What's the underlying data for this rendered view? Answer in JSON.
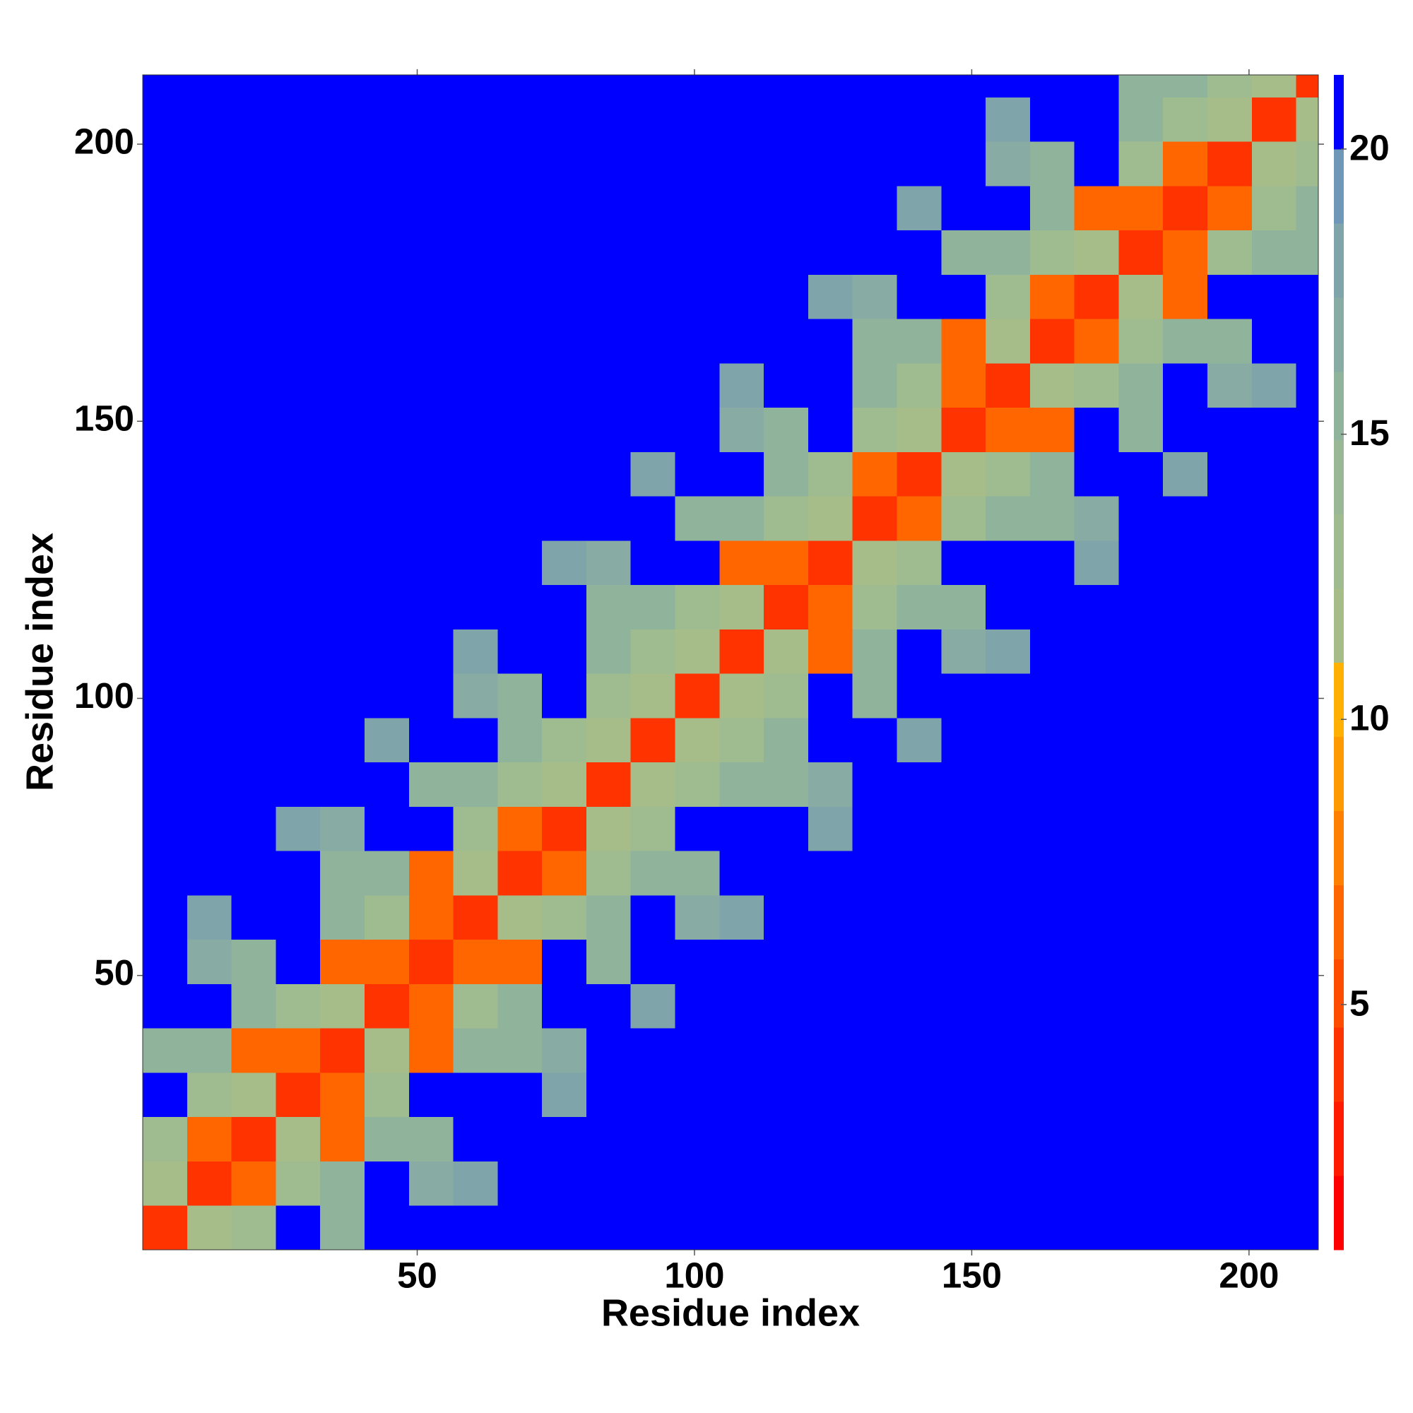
{
  "chart_data": {
    "type": "heatmap",
    "xlabel": "Residue index",
    "ylabel": "Residue index",
    "xbins": [
      0.5,
      8.5,
      16.5,
      24.5,
      32.5,
      40.5,
      48.5,
      56.5,
      64.5,
      72.5,
      80.5,
      88.5,
      96.5,
      104.5,
      112.5,
      120.5,
      128.5,
      136.5,
      144.5,
      152.5,
      160.5,
      168.5,
      176.5,
      184.5,
      192.5,
      200.5,
      208.5,
      212.5
    ],
    "ybins": [
      0.5,
      8.5,
      16.5,
      24.5,
      32.5,
      40.5,
      48.5,
      56.5,
      64.5,
      72.5,
      80.5,
      88.5,
      96.5,
      104.5,
      112.5,
      120.5,
      128.5,
      136.5,
      144.5,
      152.5,
      160.5,
      168.5,
      176.5,
      184.5,
      192.5,
      200.5,
      208.5,
      212.5
    ],
    "xlim": [
      0.5,
      212.5
    ],
    "ylim": [
      0.5,
      212.5
    ],
    "xticks": [
      50,
      100,
      150,
      200
    ],
    "yticks": [
      50,
      100,
      150,
      200
    ],
    "colorbar": {
      "levels": [
        0.7,
        2.0,
        3.3,
        4.6,
        5.8,
        7.1,
        8.4,
        9.7,
        11.0,
        12.3,
        13.6,
        14.9,
        16.1,
        17.4,
        18.7,
        20.0,
        21.3
      ],
      "colors": [
        "#ff0000",
        "#ff1a00",
        "#ff3300",
        "#ff4d00",
        "#ff6600",
        "#ff8000",
        "#ff9900",
        "#ffb000",
        "#a6bd8a",
        "#9fbb90",
        "#98b896",
        "#90b39c",
        "#88aca3",
        "#7fa5ab",
        "#6f97b8",
        "#0000ff"
      ],
      "ticks": [
        5,
        10,
        15,
        20
      ]
    },
    "z": [
      [
        4,
        11,
        13,
        21,
        16,
        21,
        21,
        21,
        21,
        21,
        21,
        21,
        21,
        21,
        21,
        21,
        21,
        21,
        21,
        21,
        21,
        21,
        21,
        21,
        21,
        21,
        21
      ],
      [
        11,
        4,
        6,
        13,
        15,
        21,
        17,
        18,
        21,
        21,
        21,
        21,
        21,
        21,
        21,
        21,
        21,
        21,
        21,
        21,
        21,
        21,
        21,
        21,
        21,
        21,
        21
      ],
      [
        13,
        6,
        4,
        11,
        7,
        15,
        16,
        21,
        21,
        21,
        21,
        21,
        21,
        21,
        21,
        21,
        21,
        21,
        21,
        21,
        21,
        21,
        21,
        21,
        21,
        21,
        21
      ],
      [
        21,
        13,
        11,
        4,
        6,
        13,
        21,
        21,
        21,
        18,
        21,
        21,
        21,
        21,
        21,
        21,
        21,
        21,
        21,
        21,
        21,
        21,
        21,
        21,
        21,
        21,
        21
      ],
      [
        16,
        15,
        7,
        6,
        4,
        11,
        7,
        15,
        16,
        17,
        21,
        21,
        21,
        21,
        21,
        21,
        21,
        21,
        21,
        21,
        21,
        21,
        21,
        21,
        21,
        21,
        21
      ],
      [
        21,
        21,
        15,
        13,
        11,
        4,
        6,
        13,
        15,
        21,
        21,
        18,
        21,
        21,
        21,
        21,
        21,
        21,
        21,
        21,
        21,
        21,
        21,
        21,
        21,
        21,
        21
      ],
      [
        21,
        17,
        16,
        21,
        7,
        6,
        4,
        6,
        7,
        21,
        16,
        21,
        21,
        21,
        21,
        21,
        21,
        21,
        21,
        21,
        21,
        21,
        21,
        21,
        21,
        21,
        21
      ],
      [
        21,
        18,
        21,
        21,
        15,
        13,
        6,
        4,
        11,
        13,
        15,
        21,
        17,
        18,
        21,
        21,
        21,
        21,
        21,
        21,
        21,
        21,
        21,
        21,
        21,
        21,
        21
      ],
      [
        21,
        21,
        21,
        21,
        16,
        15,
        7,
        11,
        4,
        6,
        13,
        15,
        16,
        21,
        21,
        21,
        21,
        21,
        21,
        21,
        21,
        21,
        21,
        21,
        21,
        21,
        21
      ],
      [
        21,
        21,
        21,
        18,
        17,
        21,
        21,
        13,
        6,
        4,
        11,
        13,
        21,
        21,
        21,
        18,
        21,
        21,
        21,
        21,
        21,
        21,
        21,
        21,
        21,
        21,
        21
      ],
      [
        21,
        21,
        21,
        21,
        21,
        21,
        16,
        15,
        13,
        11,
        4,
        11,
        13,
        15,
        16,
        17,
        21,
        21,
        21,
        21,
        21,
        21,
        21,
        21,
        21,
        21,
        21
      ],
      [
        21,
        21,
        21,
        21,
        21,
        18,
        21,
        21,
        15,
        13,
        11,
        4,
        11,
        13,
        15,
        21,
        21,
        18,
        21,
        21,
        21,
        21,
        21,
        21,
        21,
        21,
        21
      ],
      [
        21,
        21,
        21,
        21,
        21,
        21,
        21,
        17,
        16,
        21,
        13,
        11,
        4,
        11,
        13,
        21,
        16,
        21,
        21,
        21,
        21,
        21,
        21,
        21,
        21,
        21,
        21
      ],
      [
        21,
        21,
        21,
        21,
        21,
        21,
        21,
        18,
        21,
        21,
        15,
        13,
        11,
        4,
        11,
        7,
        15,
        21,
        17,
        18,
        21,
        21,
        21,
        21,
        21,
        21,
        21
      ],
      [
        21,
        21,
        21,
        21,
        21,
        21,
        21,
        21,
        21,
        21,
        16,
        15,
        13,
        11,
        4,
        6,
        13,
        15,
        16,
        21,
        21,
        21,
        21,
        21,
        21,
        21,
        21
      ],
      [
        21,
        21,
        21,
        21,
        21,
        21,
        21,
        21,
        21,
        18,
        17,
        21,
        21,
        7,
        6,
        4,
        11,
        13,
        21,
        21,
        21,
        18,
        21,
        21,
        21,
        21,
        21
      ],
      [
        21,
        21,
        21,
        21,
        21,
        21,
        21,
        21,
        21,
        21,
        21,
        21,
        16,
        15,
        13,
        11,
        4,
        6,
        13,
        15,
        16,
        17,
        21,
        21,
        21,
        21,
        21
      ],
      [
        21,
        21,
        21,
        21,
        21,
        21,
        21,
        21,
        21,
        21,
        21,
        18,
        21,
        21,
        15,
        13,
        6,
        4,
        11,
        13,
        15,
        21,
        21,
        18,
        21,
        21,
        21
      ],
      [
        21,
        21,
        21,
        21,
        21,
        21,
        21,
        21,
        21,
        21,
        21,
        21,
        21,
        17,
        16,
        21,
        13,
        11,
        4,
        6,
        7,
        21,
        16,
        21,
        21,
        21,
        21
      ],
      [
        21,
        21,
        21,
        21,
        21,
        21,
        21,
        21,
        21,
        21,
        21,
        21,
        21,
        18,
        21,
        21,
        15,
        13,
        6,
        4,
        11,
        13,
        15,
        21,
        17,
        18,
        21
      ],
      [
        21,
        21,
        21,
        21,
        21,
        21,
        21,
        21,
        21,
        21,
        21,
        21,
        21,
        21,
        21,
        21,
        16,
        15,
        7,
        11,
        4,
        6,
        13,
        15,
        16,
        21,
        21
      ],
      [
        21,
        21,
        21,
        21,
        21,
        21,
        21,
        21,
        21,
        21,
        21,
        21,
        21,
        21,
        21,
        18,
        17,
        21,
        21,
        13,
        6,
        4,
        11,
        7,
        21,
        21,
        21
      ],
      [
        21,
        21,
        21,
        21,
        21,
        21,
        21,
        21,
        21,
        21,
        21,
        21,
        21,
        21,
        21,
        21,
        21,
        21,
        16,
        15,
        13,
        11,
        4,
        6,
        13,
        15,
        16
      ],
      [
        21,
        21,
        21,
        21,
        21,
        21,
        21,
        21,
        21,
        21,
        21,
        21,
        21,
        21,
        21,
        21,
        21,
        18,
        21,
        21,
        15,
        7,
        6,
        4,
        6,
        13,
        15
      ],
      [
        21,
        21,
        21,
        21,
        21,
        21,
        21,
        21,
        21,
        21,
        21,
        21,
        21,
        21,
        21,
        21,
        21,
        21,
        21,
        17,
        16,
        21,
        13,
        6,
        4,
        11,
        13
      ],
      [
        21,
        21,
        21,
        21,
        21,
        21,
        21,
        21,
        21,
        21,
        21,
        21,
        21,
        21,
        21,
        21,
        21,
        21,
        21,
        18,
        21,
        21,
        15,
        13,
        11,
        4,
        11
      ],
      [
        21,
        21,
        21,
        21,
        21,
        21,
        21,
        21,
        21,
        21,
        21,
        21,
        21,
        21,
        21,
        21,
        21,
        21,
        21,
        21,
        21,
        21,
        16,
        15,
        13,
        11,
        4
      ]
    ]
  }
}
